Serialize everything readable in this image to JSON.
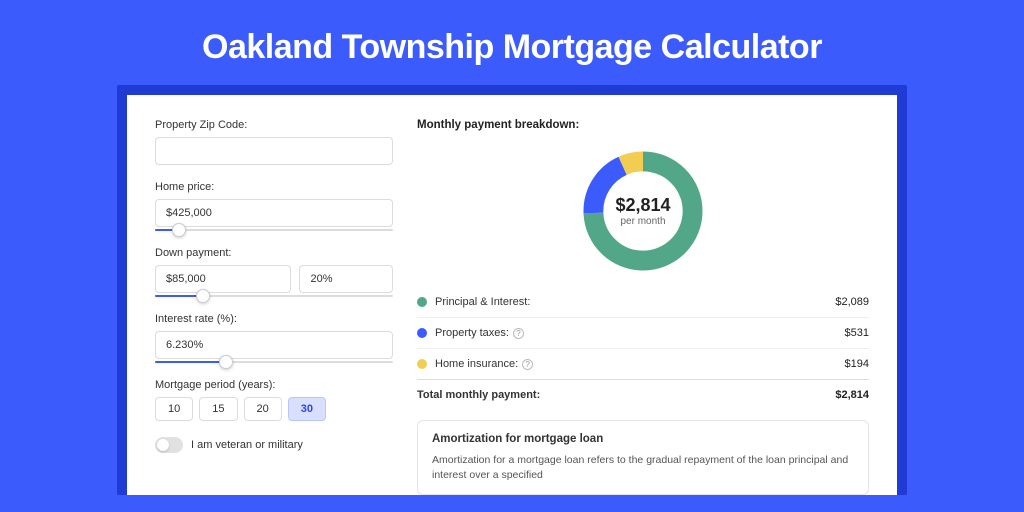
{
  "page": {
    "title": "Oakland Township Mortgage Calculator"
  },
  "form": {
    "zip": {
      "label": "Property Zip Code:",
      "value": ""
    },
    "home_price": {
      "label": "Home price:",
      "value": "$425,000",
      "slider_percent": 10
    },
    "down_payment": {
      "label": "Down payment:",
      "amount": "$85,000",
      "percent": "20%",
      "slider_percent": 20
    },
    "interest": {
      "label": "Interest rate (%):",
      "value": "6.230%",
      "slider_percent": 30
    },
    "period": {
      "label": "Mortgage period (years):",
      "options": [
        "10",
        "15",
        "20",
        "30"
      ],
      "selected": "30"
    },
    "veteran": {
      "label": "I am veteran or military",
      "checked": false
    }
  },
  "breakdown": {
    "title": "Monthly payment breakdown:",
    "center_amount": "$2,814",
    "center_sub": "per month",
    "segments": [
      {
        "name": "Principal & Interest:",
        "value_label": "$2,089",
        "value": 2089,
        "color": "#52a789"
      },
      {
        "name": "Property taxes:",
        "value_label": "$531",
        "value": 531,
        "color": "#3b5bfd",
        "has_info": true
      },
      {
        "name": "Home insurance:",
        "value_label": "$194",
        "value": 194,
        "color": "#f3cd52",
        "has_info": true
      }
    ],
    "total_label": "Total monthly payment:",
    "total_value": "$2,814",
    "donut": {
      "stroke_width": 16
    }
  },
  "amortization": {
    "title": "Amortization for mortgage loan",
    "text": "Amortization for a mortgage loan refers to the gradual repayment of the loan principal and interest over a specified"
  }
}
